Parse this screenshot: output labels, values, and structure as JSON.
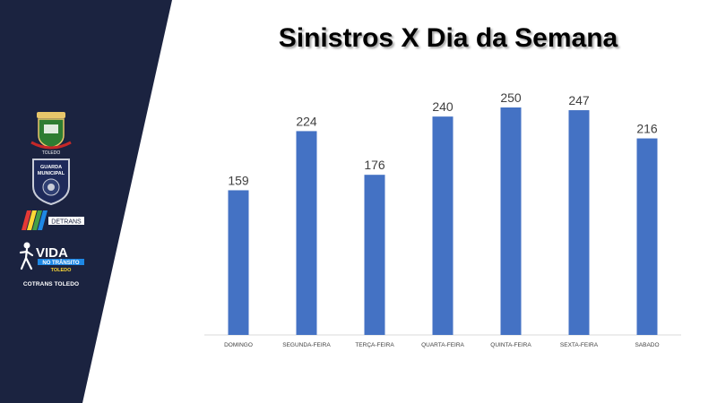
{
  "slide": {
    "title": "Sinistros X Dia da Semana",
    "sidebar_color": "#1b2340"
  },
  "sidebar": {
    "logos": [
      {
        "icon": "municipal-coat-of-arms-icon",
        "text": "TOLEDO"
      },
      {
        "icon": "guarda-municipal-badge-icon",
        "text": "GUARDA MUNICIPAL"
      },
      {
        "icon": "detrans-logo-icon",
        "text": "DETRANS"
      },
      {
        "icon": "vida-no-transito-logo-icon",
        "text_main": "VIDA",
        "text_sub": "NO TRÂNSITO",
        "text_city": "TOLEDO"
      }
    ],
    "footer": "COTRANS TOLEDO"
  },
  "chart_data": {
    "type": "bar",
    "categories": [
      "DOMINGO",
      "SEGUNDA-FEIRA",
      "TERÇA-FEIRA",
      "QUARTA-FEIRA",
      "QUINTA-FEIRA",
      "SEXTA-FEIRA",
      "SABADO"
    ],
    "values": [
      159,
      224,
      176,
      240,
      250,
      247,
      216
    ],
    "ylim": [
      0,
      250
    ],
    "bar_color": "#4472c4",
    "data_labels": true,
    "grid": false,
    "legend": "none"
  }
}
